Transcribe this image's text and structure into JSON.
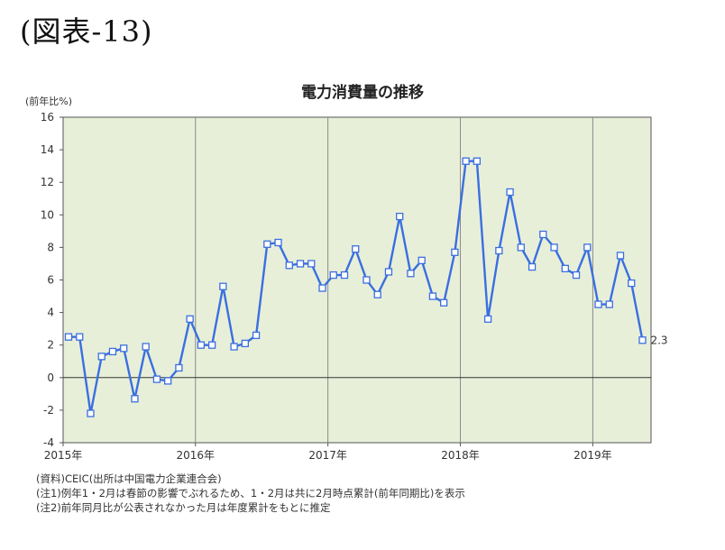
{
  "figure_label": "(図表-13)",
  "chart_data": {
    "type": "line",
    "title": "電力消費量の推移",
    "ylabel": "(前年比%)",
    "xlabel": "",
    "ylim": [
      -4,
      16
    ],
    "yticks": [
      -4,
      -2,
      0,
      2,
      4,
      6,
      8,
      10,
      12,
      14,
      16
    ],
    "xtick_labels": [
      "2015年",
      "2016年",
      "2017年",
      "2018年",
      "2019年"
    ],
    "grid": "vertical lines at year boundaries",
    "background_color": "#e8efd9",
    "line_color": "#3a6fe0",
    "marker": "hollow square",
    "start": "2015-01",
    "end": "2019-05",
    "x": [
      "2015-01",
      "2015-02",
      "2015-03",
      "2015-04",
      "2015-05",
      "2015-06",
      "2015-07",
      "2015-08",
      "2015-09",
      "2015-10",
      "2015-11",
      "2015-12",
      "2016-01",
      "2016-02",
      "2016-03",
      "2016-04",
      "2016-05",
      "2016-06",
      "2016-07",
      "2016-08",
      "2016-09",
      "2016-10",
      "2016-11",
      "2016-12",
      "2017-01",
      "2017-02",
      "2017-03",
      "2017-04",
      "2017-05",
      "2017-06",
      "2017-07",
      "2017-08",
      "2017-09",
      "2017-10",
      "2017-11",
      "2017-12",
      "2018-01",
      "2018-02",
      "2018-03",
      "2018-04",
      "2018-05",
      "2018-06",
      "2018-07",
      "2018-08",
      "2018-09",
      "2018-10",
      "2018-11",
      "2018-12",
      "2019-01",
      "2019-02",
      "2019-03",
      "2019-04",
      "2019-05"
    ],
    "values": [
      2.5,
      2.5,
      -2.2,
      1.3,
      1.6,
      1.8,
      -1.3,
      1.9,
      -0.1,
      -0.2,
      0.6,
      3.6,
      2.0,
      2.0,
      5.6,
      1.9,
      2.1,
      2.6,
      8.2,
      8.3,
      6.9,
      7.0,
      7.0,
      5.5,
      6.3,
      6.3,
      7.9,
      6.0,
      5.1,
      6.5,
      9.9,
      6.4,
      7.2,
      5.0,
      4.6,
      7.7,
      13.3,
      13.3,
      3.6,
      7.8,
      11.4,
      8.0,
      6.8,
      8.8,
      8.0,
      6.7,
      6.3,
      8.0,
      4.5,
      4.5,
      7.5,
      5.8,
      2.3
    ],
    "last_value_label": "2.3"
  },
  "notes": [
    "(資料)CEIC(出所は中国電力企業連合会)",
    "(注1)例年1・2月は春節の影響でぶれるため、1・2月は共に2月時点累計(前年同期比)を表示",
    "(注2)前年同月比が公表されなかった月は年度累計をもとに推定"
  ]
}
